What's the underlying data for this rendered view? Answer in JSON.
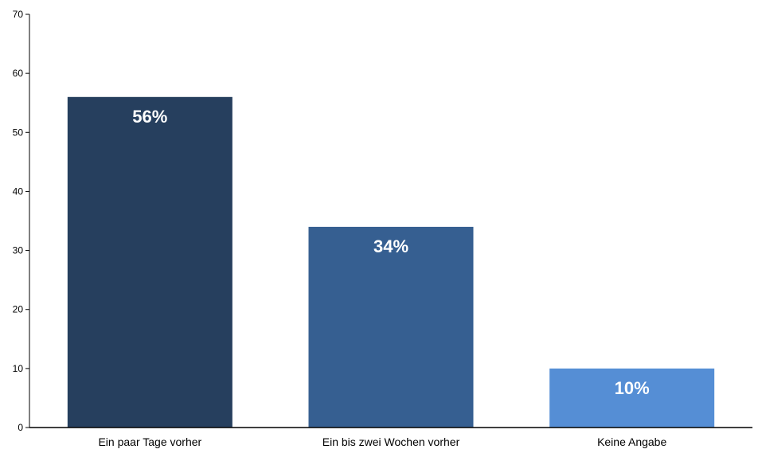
{
  "chart_data": {
    "type": "bar",
    "categories": [
      "Ein paar Tage vorher",
      "Ein bis zwei Wochen vorher",
      "Keine Angabe"
    ],
    "values": [
      56,
      34,
      10
    ],
    "data_labels": [
      "56%",
      "34%",
      "10%"
    ],
    "bar_colors": [
      "#263f5e",
      "#365f91",
      "#558ed5"
    ],
    "ylim": [
      0,
      70
    ],
    "yticks": [
      0,
      10,
      20,
      30,
      40,
      50,
      60,
      70
    ],
    "grid": false,
    "legend": "none"
  }
}
